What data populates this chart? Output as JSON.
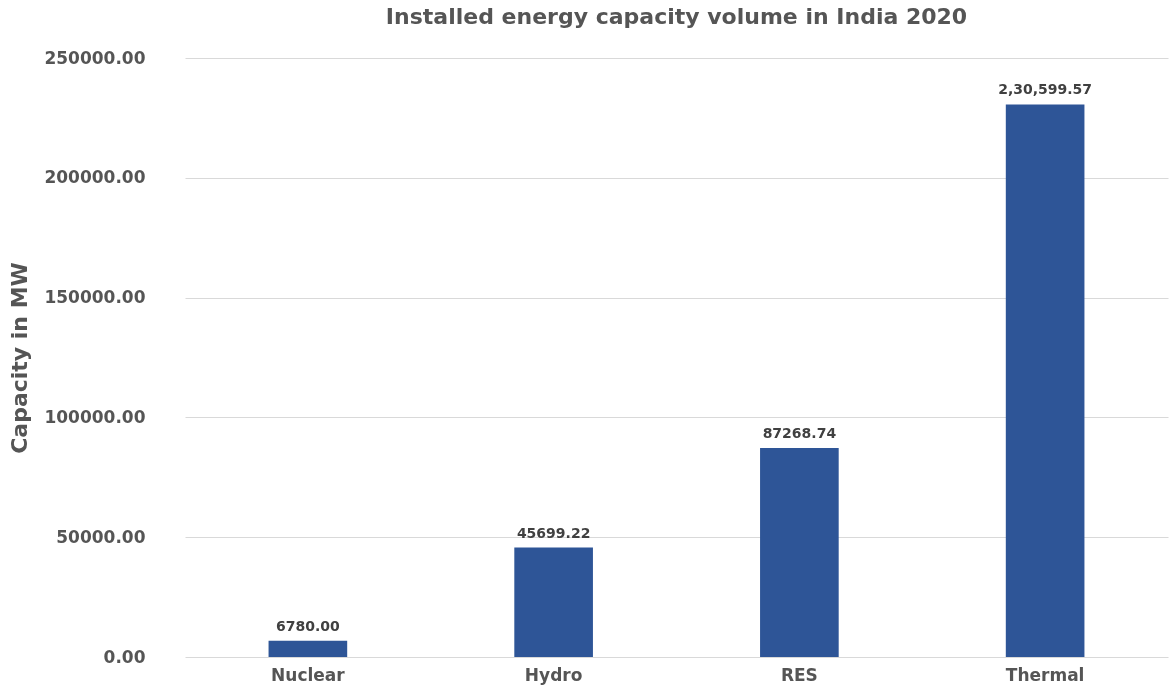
{
  "chart_data": {
    "type": "bar",
    "title": "Installed energy capacity volume in India 2020",
    "ylabel": "Capacity in MW",
    "categories": [
      "Nuclear",
      "Hydro",
      "RES",
      "Thermal"
    ],
    "values": [
      6780,
      45699.22,
      87268.74,
      230599.57
    ],
    "value_labels": [
      "6780.00",
      "45699.22",
      "87268.74",
      "2,30,599.57"
    ],
    "color": "#2e5597",
    "ylim": [
      0,
      250000
    ],
    "yticks": [
      {
        "value": 0,
        "label": "0.00"
      },
      {
        "value": 50000,
        "label": "50000.00"
      },
      {
        "value": 100000,
        "label": "100000.00"
      },
      {
        "value": 150000,
        "label": "150000.00"
      },
      {
        "value": 200000,
        "label": "200000.00"
      },
      {
        "value": 250000,
        "label": "250000.00"
      }
    ],
    "grid": "y"
  }
}
